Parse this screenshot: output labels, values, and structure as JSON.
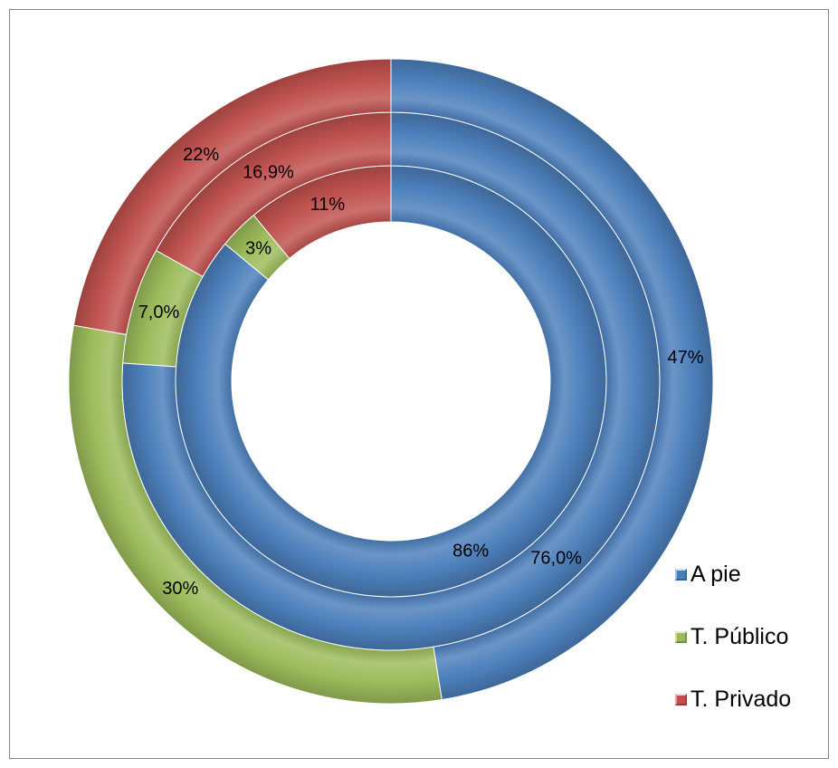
{
  "chart_data": {
    "type": "donut",
    "categories": [
      "A pie",
      "T. Público",
      "T. Privado"
    ],
    "colors": [
      "#4a7ebb",
      "#9bbb59",
      "#c0504d"
    ],
    "rings": [
      {
        "values": [
          86,
          3,
          11
        ],
        "labels": [
          "86%",
          "3%",
          "11%"
        ]
      },
      {
        "values": [
          76.0,
          7.0,
          16.9
        ],
        "labels": [
          "76,0%",
          "7,0%",
          "16,9%"
        ]
      },
      {
        "values": [
          47,
          30,
          22
        ],
        "labels": [
          "47%",
          "30%",
          "22%"
        ]
      }
    ],
    "legend": {
      "position": "bottom-right",
      "items": [
        {
          "label": "A pie",
          "color": "#4a7ebb"
        },
        {
          "label": "T. Público",
          "color": "#9bbb59"
        },
        {
          "label": "T. Privado",
          "color": "#c0504d"
        }
      ]
    }
  }
}
